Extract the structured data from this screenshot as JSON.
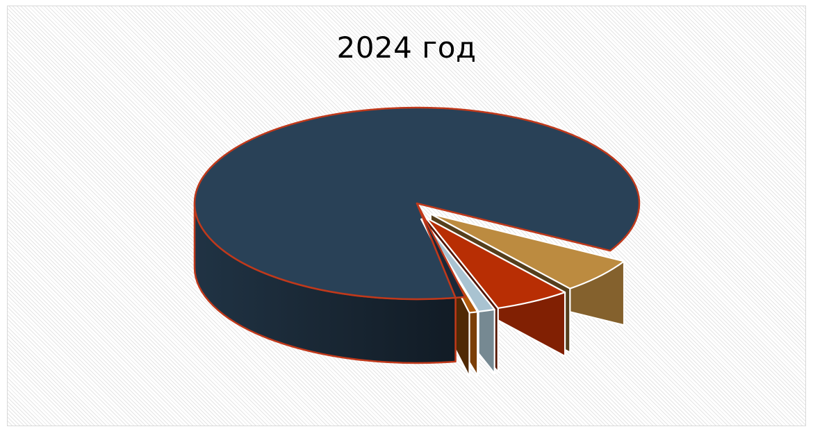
{
  "chart_data": {
    "type": "pie",
    "style": "3d-exploded",
    "title": "2024 год",
    "legend": "none",
    "data_labels": "none",
    "slices": [
      {
        "value": 86.0,
        "color": "#294157",
        "exploded": false
      },
      {
        "value": 6.0,
        "color": "#BC8B40",
        "exploded": true
      },
      {
        "value": 5.5,
        "color": "#B82E04",
        "exploded": true
      },
      {
        "value": 1.2,
        "color": "#A9C3D1",
        "exploded": true
      },
      {
        "value": 0.6,
        "color": "#B15A0C",
        "exploded": true
      },
      {
        "value": 0.7,
        "color": "#1A2838",
        "exploded": false
      }
    ],
    "border_color": "#C0391B"
  }
}
